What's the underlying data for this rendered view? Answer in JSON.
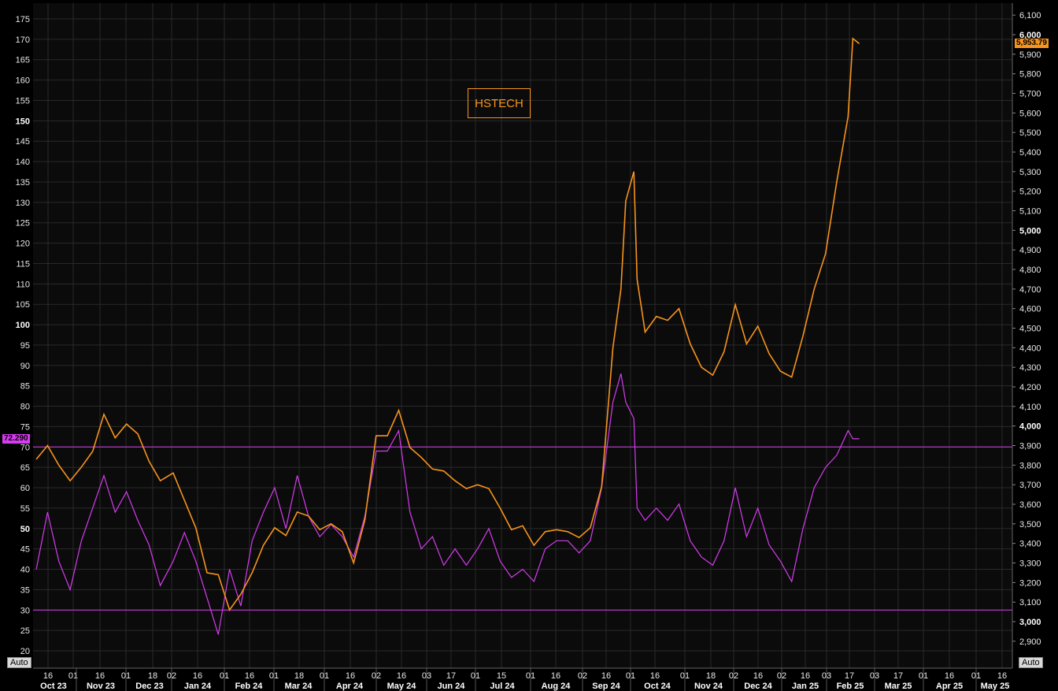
{
  "chart_data": {
    "type": "line",
    "title": "HSTECH",
    "colors": {
      "price": "#f7941d",
      "rsi": "#d63cf0",
      "grid": "#2a2a2a",
      "background": "#0b0b0b"
    },
    "left_axis": {
      "ticks": [
        175,
        170,
        165,
        160,
        155,
        150,
        145,
        140,
        135,
        130,
        125,
        120,
        115,
        110,
        105,
        100,
        95,
        90,
        85,
        80,
        75,
        70,
        65,
        60,
        55,
        50,
        45,
        40,
        35,
        30,
        25,
        20
      ],
      "bold": [
        150,
        100,
        50
      ],
      "range": [
        20,
        175
      ]
    },
    "right_axis": {
      "ticks": [
        "6,100",
        "6,000",
        "5,900",
        "5,800",
        "5,700",
        "5,600",
        "5,500",
        "5,400",
        "5,300",
        "5,200",
        "5,100",
        "5,000",
        "4,900",
        "4,800",
        "4,700",
        "4,600",
        "4,500",
        "4,400",
        "4,300",
        "4,200",
        "4,100",
        "4,000",
        "3,900",
        "3,800",
        "3,700",
        "3,600",
        "3,500",
        "3,400",
        "3,300",
        "3,200",
        "3,100",
        "3,000",
        "2,900"
      ],
      "bold": [
        "6,000",
        "5,000",
        "4,000",
        "3,000"
      ],
      "range": [
        2850,
        6130
      ]
    },
    "levels": [
      70,
      30
    ],
    "last_values": {
      "rsi": "72.290",
      "price": "5,953.79"
    },
    "auto_label": "Auto",
    "x_days": [
      "16",
      "01",
      "16",
      "01",
      "18",
      "02",
      "16",
      "01",
      "16",
      "01",
      "18",
      "01",
      "16",
      "02",
      "16",
      "03",
      "17",
      "01",
      "15",
      "01",
      "16",
      "02",
      "16",
      "01",
      "16",
      "01",
      "18",
      "02",
      "16",
      "02",
      "16",
      "03",
      "17",
      "03",
      "17",
      "01",
      "16",
      "01",
      "16"
    ],
    "x_months": [
      "Oct 23",
      "Nov 23",
      "Dec 23",
      "Jan 24",
      "Feb 24",
      "Mar 24",
      "Apr 24",
      "May 24",
      "Jun 24",
      "Jul 24",
      "Aug 24",
      "Sep 24",
      "Oct 24",
      "Nov 24",
      "Dec 24",
      "Jan 25",
      "Feb 25",
      "Mar 25",
      "Apr 25",
      "May 25"
    ],
    "price_series": [
      [
        "2023-10-03",
        3830
      ],
      [
        "2023-10-10",
        3900
      ],
      [
        "2023-10-17",
        3800
      ],
      [
        "2023-10-24",
        3720
      ],
      [
        "2023-10-31",
        3790
      ],
      [
        "2023-11-07",
        3870
      ],
      [
        "2023-11-14",
        4060
      ],
      [
        "2023-11-21",
        3940
      ],
      [
        "2023-11-28",
        4010
      ],
      [
        "2023-12-05",
        3960
      ],
      [
        "2023-12-12",
        3820
      ],
      [
        "2023-12-19",
        3720
      ],
      [
        "2023-12-27",
        3760
      ],
      [
        "2024-01-03",
        3620
      ],
      [
        "2024-01-10",
        3480
      ],
      [
        "2024-01-17",
        3250
      ],
      [
        "2024-01-24",
        3240
      ],
      [
        "2024-01-31",
        3060
      ],
      [
        "2024-02-07",
        3140
      ],
      [
        "2024-02-14",
        3250
      ],
      [
        "2024-02-21",
        3390
      ],
      [
        "2024-02-28",
        3480
      ],
      [
        "2024-03-06",
        3440
      ],
      [
        "2024-03-13",
        3560
      ],
      [
        "2024-03-20",
        3540
      ],
      [
        "2024-03-27",
        3470
      ],
      [
        "2024-04-03",
        3500
      ],
      [
        "2024-04-10",
        3460
      ],
      [
        "2024-04-17",
        3300
      ],
      [
        "2024-04-24",
        3520
      ],
      [
        "2024-05-01",
        3950
      ],
      [
        "2024-05-08",
        3950
      ],
      [
        "2024-05-15",
        4080
      ],
      [
        "2024-05-22",
        3890
      ],
      [
        "2024-05-29",
        3840
      ],
      [
        "2024-06-05",
        3780
      ],
      [
        "2024-06-12",
        3770
      ],
      [
        "2024-06-19",
        3720
      ],
      [
        "2024-06-26",
        3680
      ],
      [
        "2024-07-03",
        3700
      ],
      [
        "2024-07-10",
        3680
      ],
      [
        "2024-07-17",
        3580
      ],
      [
        "2024-07-24",
        3470
      ],
      [
        "2024-07-31",
        3490
      ],
      [
        "2024-08-07",
        3390
      ],
      [
        "2024-08-14",
        3460
      ],
      [
        "2024-08-21",
        3470
      ],
      [
        "2024-08-28",
        3460
      ],
      [
        "2024-09-04",
        3430
      ],
      [
        "2024-09-11",
        3480
      ],
      [
        "2024-09-18",
        3690
      ],
      [
        "2024-09-25",
        4400
      ],
      [
        "2024-09-30",
        4700
      ],
      [
        "2024-10-03",
        5150
      ],
      [
        "2024-10-08",
        5300
      ],
      [
        "2024-10-10",
        4750
      ],
      [
        "2024-10-15",
        4480
      ],
      [
        "2024-10-22",
        4560
      ],
      [
        "2024-10-29",
        4540
      ],
      [
        "2024-11-05",
        4600
      ],
      [
        "2024-11-12",
        4420
      ],
      [
        "2024-11-19",
        4300
      ],
      [
        "2024-11-26",
        4260
      ],
      [
        "2024-12-03",
        4380
      ],
      [
        "2024-12-10",
        4620
      ],
      [
        "2024-12-17",
        4420
      ],
      [
        "2024-12-24",
        4510
      ],
      [
        "2024-12-31",
        4370
      ],
      [
        "2025-01-07",
        4280
      ],
      [
        "2025-01-14",
        4250
      ],
      [
        "2025-01-21",
        4460
      ],
      [
        "2025-01-28",
        4700
      ],
      [
        "2025-02-04",
        4880
      ],
      [
        "2025-02-11",
        5250
      ],
      [
        "2025-02-18",
        5580
      ],
      [
        "2025-02-21",
        5980
      ],
      [
        "2025-02-25",
        5954
      ]
    ],
    "rsi_series": [
      [
        "2023-10-03",
        40
      ],
      [
        "2023-10-10",
        54
      ],
      [
        "2023-10-17",
        42
      ],
      [
        "2023-10-24",
        35
      ],
      [
        "2023-10-31",
        47
      ],
      [
        "2023-11-07",
        55
      ],
      [
        "2023-11-14",
        63
      ],
      [
        "2023-11-21",
        54
      ],
      [
        "2023-11-28",
        59
      ],
      [
        "2023-12-05",
        52
      ],
      [
        "2023-12-12",
        46
      ],
      [
        "2023-12-19",
        36
      ],
      [
        "2023-12-27",
        42
      ],
      [
        "2024-01-03",
        49
      ],
      [
        "2024-01-10",
        42
      ],
      [
        "2024-01-17",
        33
      ],
      [
        "2024-01-24",
        24
      ],
      [
        "2024-01-31",
        40
      ],
      [
        "2024-02-07",
        31
      ],
      [
        "2024-02-14",
        47
      ],
      [
        "2024-02-21",
        54
      ],
      [
        "2024-02-28",
        60
      ],
      [
        "2024-03-06",
        50
      ],
      [
        "2024-03-13",
        63
      ],
      [
        "2024-03-20",
        53
      ],
      [
        "2024-03-27",
        48
      ],
      [
        "2024-04-03",
        51
      ],
      [
        "2024-04-10",
        48
      ],
      [
        "2024-04-17",
        43
      ],
      [
        "2024-04-24",
        53
      ],
      [
        "2024-05-01",
        69
      ],
      [
        "2024-05-08",
        69
      ],
      [
        "2024-05-15",
        74
      ],
      [
        "2024-05-22",
        54
      ],
      [
        "2024-05-29",
        45
      ],
      [
        "2024-06-05",
        48
      ],
      [
        "2024-06-12",
        41
      ],
      [
        "2024-06-19",
        45
      ],
      [
        "2024-06-26",
        41
      ],
      [
        "2024-07-03",
        45
      ],
      [
        "2024-07-10",
        50
      ],
      [
        "2024-07-17",
        42
      ],
      [
        "2024-07-24",
        38
      ],
      [
        "2024-07-31",
        40
      ],
      [
        "2024-08-07",
        37
      ],
      [
        "2024-08-14",
        45
      ],
      [
        "2024-08-21",
        47
      ],
      [
        "2024-08-28",
        47
      ],
      [
        "2024-09-04",
        44
      ],
      [
        "2024-09-11",
        47
      ],
      [
        "2024-09-18",
        60
      ],
      [
        "2024-09-25",
        81
      ],
      [
        "2024-09-30",
        88
      ],
      [
        "2024-10-03",
        81
      ],
      [
        "2024-10-08",
        77
      ],
      [
        "2024-10-10",
        55
      ],
      [
        "2024-10-15",
        52
      ],
      [
        "2024-10-22",
        55
      ],
      [
        "2024-10-29",
        52
      ],
      [
        "2024-11-05",
        56
      ],
      [
        "2024-11-12",
        47
      ],
      [
        "2024-11-19",
        43
      ],
      [
        "2024-11-26",
        41
      ],
      [
        "2024-12-03",
        47
      ],
      [
        "2024-12-10",
        60
      ],
      [
        "2024-12-17",
        48
      ],
      [
        "2024-12-24",
        55
      ],
      [
        "2024-12-31",
        46
      ],
      [
        "2025-01-07",
        42
      ],
      [
        "2025-01-14",
        37
      ],
      [
        "2025-01-21",
        50
      ],
      [
        "2025-01-28",
        60
      ],
      [
        "2025-02-04",
        65
      ],
      [
        "2025-02-11",
        68
      ],
      [
        "2025-02-18",
        74
      ],
      [
        "2025-02-21",
        72
      ],
      [
        "2025-02-25",
        72
      ]
    ]
  }
}
